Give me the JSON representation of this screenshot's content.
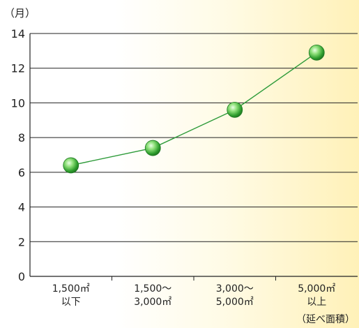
{
  "chart_data": {
    "type": "line",
    "ylabel": "（月）",
    "xlabel": "（延べ面積）",
    "ylim": [
      0,
      14
    ],
    "yticks": [
      0,
      2,
      4,
      6,
      8,
      10,
      12,
      14
    ],
    "grid": true,
    "categories": [
      [
        "1,500㎡",
        "以下"
      ],
      [
        "1,500～",
        "3,000㎡"
      ],
      [
        "3,000～",
        "5,000㎡"
      ],
      [
        "5,000㎡",
        "以上"
      ]
    ],
    "series": [
      {
        "values": [
          6.4,
          7.4,
          9.6,
          12.9
        ],
        "color": "#2e9b3a"
      }
    ]
  }
}
